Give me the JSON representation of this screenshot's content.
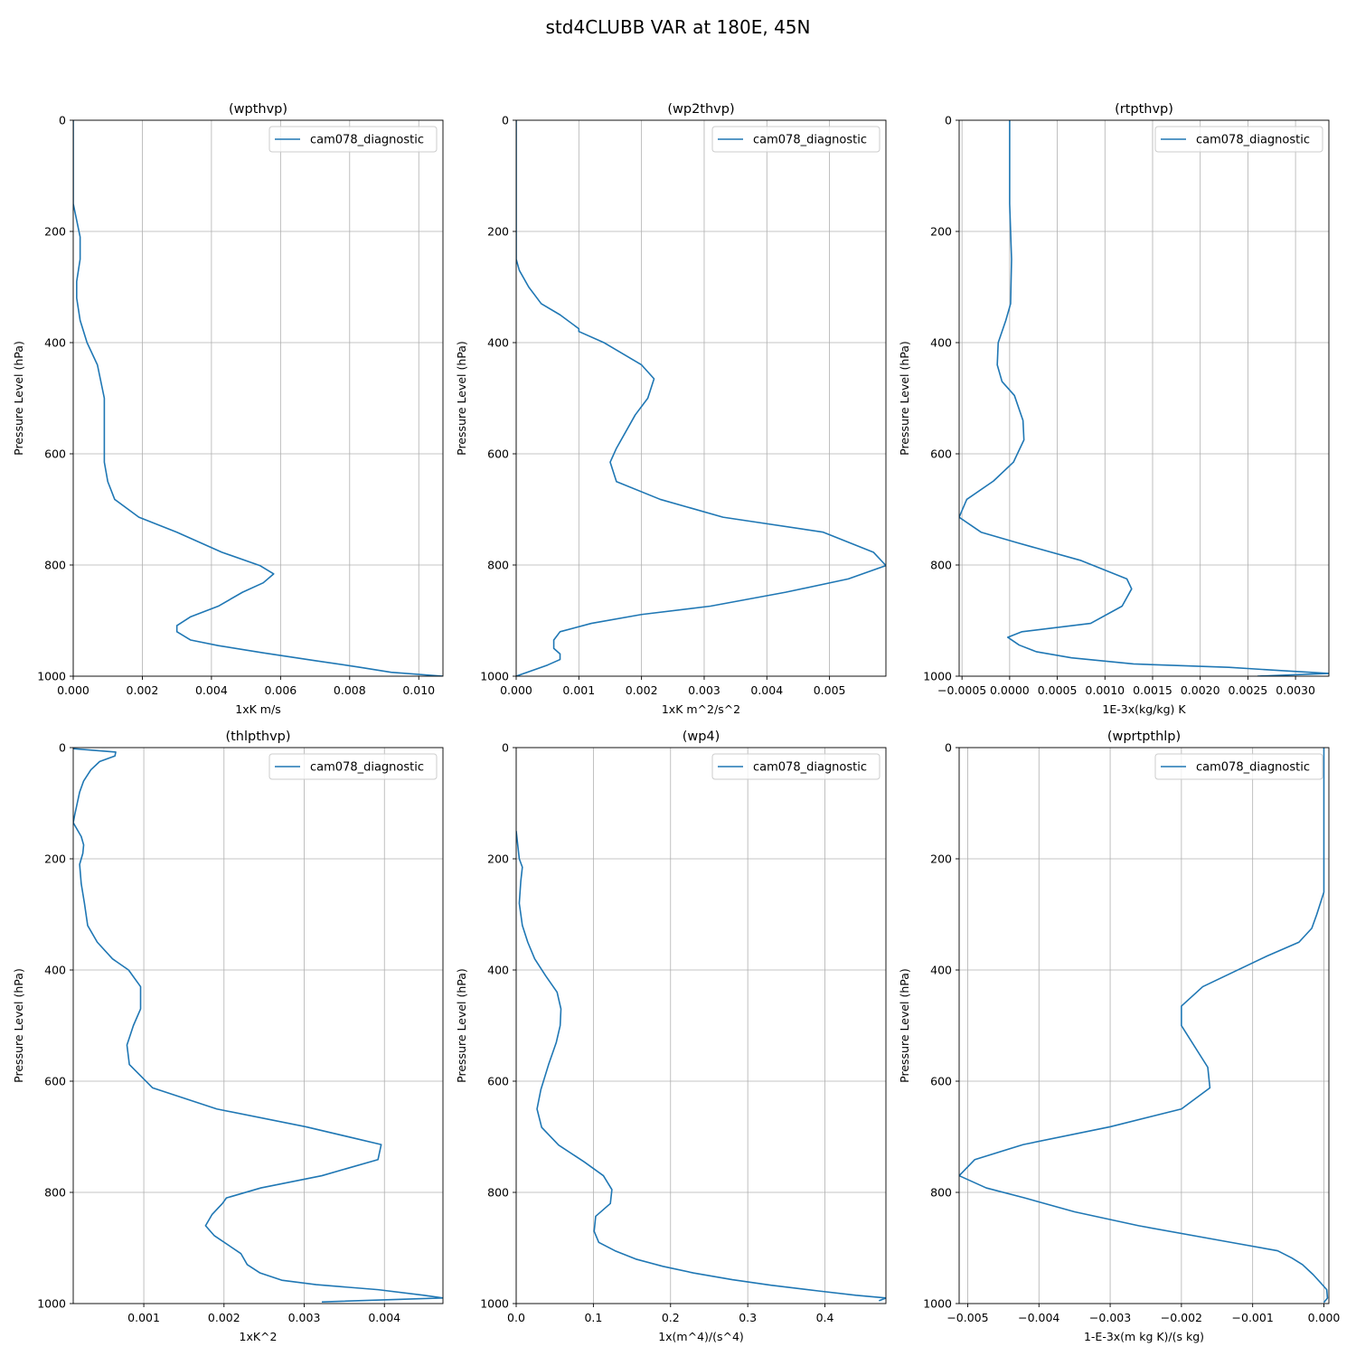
{
  "figure": {
    "title": "std4CLUBB VAR at 180E, 45N"
  },
  "colors": {
    "series": "#1f77b4",
    "grid": "#b0b0b0",
    "axes": "#000000"
  },
  "chart_data": [
    {
      "type": "line",
      "title": "(wpthvp)",
      "xlabel": "1xK m/s",
      "ylabel": "Pressure Level (hPa)",
      "xlim": [
        0.0,
        0.0107
      ],
      "ylim": [
        1000,
        0
      ],
      "xticks": [
        0.0,
        0.002,
        0.004,
        0.006,
        0.008,
        0.01
      ],
      "xtick_labels": [
        "0.000",
        "0.002",
        "0.004",
        "0.006",
        "0.008",
        "0.010"
      ],
      "yticks": [
        0,
        200,
        400,
        600,
        800,
        1000
      ],
      "ytick_labels": [
        "0",
        "200",
        "400",
        "600",
        "800",
        "1000"
      ],
      "grid": true,
      "legend": {
        "position": "top-right",
        "entries": [
          "cam078_diagnostic"
        ]
      },
      "series": [
        {
          "name": "cam078_diagnostic",
          "x": [
            0.0,
            0.0,
            0.0,
            0.0,
            0.0001,
            0.0002,
            0.0002,
            0.0001,
            0.0001,
            0.0002,
            0.0004,
            0.0007,
            0.0009,
            0.0009,
            0.0009,
            0.0009,
            0.0009,
            0.001,
            0.0012,
            0.0019,
            0.003,
            0.0043,
            0.0054,
            0.0058,
            0.0055,
            0.0049,
            0.0042,
            0.0034,
            0.003,
            0.003,
            0.0034,
            0.0042,
            0.0055,
            0.007,
            0.0083,
            0.0092,
            0.0107
          ],
          "y": [
            0,
            50,
            100,
            150,
            180,
            210,
            250,
            290,
            320,
            360,
            400,
            440,
            500,
            520,
            540,
            580,
            615,
            650,
            682,
            714,
            741,
            777,
            801,
            816,
            832,
            849,
            874,
            893,
            909,
            920,
            935,
            945,
            958,
            972,
            984,
            993,
            1000
          ]
        }
      ]
    },
    {
      "type": "line",
      "title": "(wp2thvp)",
      "xlabel": "1xK m^2/s^2",
      "ylabel": "Pressure Level (hPa)",
      "xlim": [
        0.0,
        0.0059
      ],
      "ylim": [
        1000,
        0
      ],
      "xticks": [
        0.0,
        0.001,
        0.002,
        0.003,
        0.004,
        0.005
      ],
      "xtick_labels": [
        "0.000",
        "0.001",
        "0.002",
        "0.003",
        "0.004",
        "0.005"
      ],
      "yticks": [
        0,
        200,
        400,
        600,
        800,
        1000
      ],
      "ytick_labels": [
        "0",
        "200",
        "400",
        "600",
        "800",
        "1000"
      ],
      "grid": true,
      "legend": {
        "position": "top-right",
        "entries": [
          "cam078_diagnostic"
        ]
      },
      "series": [
        {
          "name": "cam078_diagnostic",
          "x": [
            0.0,
            0.0,
            0.0,
            5e-05,
            0.0002,
            0.0004,
            0.0007,
            0.001,
            0.001,
            0.0014,
            0.002,
            0.0022,
            0.0021,
            0.0019,
            0.0016,
            0.0015,
            0.0016,
            0.0023,
            0.0033,
            0.0049,
            0.0057,
            0.0059,
            0.0053,
            0.0043,
            0.0031,
            0.002,
            0.0012,
            0.0007,
            0.0006,
            0.0006,
            0.0007,
            0.0007,
            0.0005,
            0.0
          ],
          "y": [
            0,
            100,
            250,
            270,
            300,
            330,
            350,
            375,
            380,
            400,
            440,
            465,
            500,
            530,
            590,
            615,
            650,
            682,
            714,
            741,
            777,
            801,
            825,
            849,
            874,
            889,
            905,
            920,
            935,
            950,
            960,
            970,
            980,
            1000
          ]
        }
      ]
    },
    {
      "type": "line",
      "title": "(rtpthvp)",
      "xlabel": "1E-3x(kg/kg) K",
      "ylabel": "Pressure Level (hPa)",
      "xlim": [
        -0.00053,
        0.00335
      ],
      "ylim": [
        1000,
        0
      ],
      "xticks": [
        -0.0005,
        0.0,
        0.0005,
        0.001,
        0.0015,
        0.002,
        0.0025,
        0.003
      ],
      "xtick_labels": [
        "−0.0005",
        "0.0000",
        "0.0005",
        "0.0010",
        "0.0015",
        "0.0020",
        "0.0025",
        "0.0030"
      ],
      "yticks": [
        0,
        200,
        400,
        600,
        800,
        1000
      ],
      "ytick_labels": [
        "0",
        "200",
        "400",
        "600",
        "800",
        "1000"
      ],
      "grid": true,
      "legend": {
        "position": "top-right",
        "entries": [
          "cam078_diagnostic"
        ]
      },
      "series": [
        {
          "name": "cam078_diagnostic",
          "x": [
            0.0,
            0.0,
            2e-05,
            1e-05,
            -4e-05,
            -0.00012,
            -0.00013,
            -8e-05,
            5e-05,
            0.00014,
            0.00015,
            4e-05,
            -0.00017,
            -0.00045,
            -0.00053,
            -0.0003,
            8e-05,
            0.00075,
            0.00123,
            0.00128,
            0.00118,
            0.00085,
            0.00013,
            -2e-05,
            0.0001,
            0.00028,
            0.00065,
            0.0013,
            0.0023,
            0.00285,
            0.00335,
            0.0026
          ],
          "y": [
            0,
            150,
            250,
            330,
            360,
            400,
            440,
            470,
            495,
            540,
            575,
            615,
            649,
            682,
            714,
            741,
            760,
            792,
            825,
            843,
            874,
            905,
            920,
            930,
            944,
            956,
            967,
            978,
            984,
            990,
            995,
            1000
          ]
        }
      ]
    },
    {
      "type": "line",
      "title": "(thlpthvp)",
      "xlabel": "1xK^2",
      "ylabel": "Pressure Level (hPa)",
      "xlim": [
        0.00012,
        0.00473
      ],
      "ylim": [
        1000,
        0
      ],
      "xticks": [
        0.001,
        0.002,
        0.003,
        0.004
      ],
      "xtick_labels": [
        "0.001",
        "0.002",
        "0.003",
        "0.004"
      ],
      "yticks": [
        0,
        200,
        400,
        600,
        800,
        1000
      ],
      "ytick_labels": [
        "0",
        "200",
        "400",
        "600",
        "800",
        "1000"
      ],
      "grid": true,
      "legend": {
        "position": "top-right",
        "entries": [
          "cam078_diagnostic"
        ]
      },
      "series": [
        {
          "name": "cam078_diagnostic",
          "x": [
            0.00012,
            0.00065,
            0.00064,
            0.00045,
            0.00034,
            0.00025,
            0.0002,
            0.00017,
            0.00014,
            0.00012,
            0.00022,
            0.00025,
            0.00024,
            0.0002,
            0.00022,
            0.00026,
            0.0003,
            0.00042,
            0.00061,
            0.00081,
            0.00096,
            0.00096,
            0.00087,
            0.00079,
            0.00082,
            0.00111,
            0.00191,
            0.00302,
            0.00396,
            0.00392,
            0.00322,
            0.00246,
            0.00203,
            0.00198,
            0.00185,
            0.00177,
            0.00188,
            0.00221,
            0.00229,
            0.00245,
            0.00272,
            0.00315,
            0.00392,
            0.00449,
            0.00473,
            0.00322
          ],
          "y": [
            2,
            8,
            15,
            25,
            40,
            60,
            80,
            100,
            120,
            135,
            160,
            175,
            190,
            210,
            245,
            280,
            320,
            350,
            380,
            400,
            430,
            470,
            500,
            535,
            570,
            612,
            650,
            682,
            714,
            741,
            770,
            792,
            810,
            820,
            840,
            860,
            878,
            910,
            930,
            945,
            958,
            966,
            975,
            985,
            990,
            997
          ]
        }
      ]
    },
    {
      "type": "line",
      "title": "(wp4)",
      "xlabel": "1x(m^4)/(s^4)",
      "ylabel": "Pressure Level (hPa)",
      "xlim": [
        0.0,
        0.479
      ],
      "ylim": [
        1000,
        0
      ],
      "xticks": [
        0.0,
        0.1,
        0.2,
        0.3,
        0.4
      ],
      "xtick_labels": [
        "0.0",
        "0.1",
        "0.2",
        "0.3",
        "0.4"
      ],
      "yticks": [
        0,
        200,
        400,
        600,
        800,
        1000
      ],
      "ytick_labels": [
        "0",
        "200",
        "400",
        "600",
        "800",
        "1000"
      ],
      "grid": true,
      "legend": {
        "position": "top-right",
        "entries": [
          "cam078_diagnostic"
        ]
      },
      "series": [
        {
          "name": "cam078_diagnostic",
          "x": [
            0.0,
            0.004,
            0.008,
            0.006,
            0.004,
            0.008,
            0.015,
            0.024,
            0.038,
            0.053,
            0.058,
            0.057,
            0.052,
            0.042,
            0.032,
            0.027,
            0.033,
            0.055,
            0.088,
            0.113,
            0.124,
            0.122,
            0.103,
            0.101,
            0.107,
            0.128,
            0.155,
            0.19,
            0.23,
            0.28,
            0.33,
            0.39,
            0.44,
            0.479,
            0.47
          ],
          "y": [
            150,
            200,
            215,
            240,
            280,
            320,
            350,
            380,
            410,
            440,
            470,
            500,
            530,
            570,
            615,
            650,
            683,
            715,
            745,
            770,
            795,
            820,
            843,
            870,
            890,
            905,
            920,
            933,
            945,
            957,
            967,
            977,
            985,
            990,
            995
          ]
        }
      ]
    },
    {
      "type": "line",
      "title": "(wprtpthlp)",
      "xlabel": "1-E-3x(m kg K)/(s kg)",
      "ylabel": "Pressure Level (hPa)",
      "xlim": [
        -0.00512,
        7e-05
      ],
      "ylim": [
        1000,
        0
      ],
      "xticks": [
        -0.005,
        -0.004,
        -0.003,
        -0.002,
        -0.001,
        0.0
      ],
      "xtick_labels": [
        "−0.005",
        "−0.004",
        "−0.003",
        "−0.002",
        "−0.001",
        "0.000"
      ],
      "yticks": [
        0,
        200,
        400,
        600,
        800,
        1000
      ],
      "ytick_labels": [
        "0",
        "200",
        "400",
        "600",
        "800",
        "1000"
      ],
      "grid": true,
      "legend": {
        "position": "top-right",
        "entries": [
          "cam078_diagnostic"
        ]
      },
      "series": [
        {
          "name": "cam078_diagnostic",
          "x": [
            0.0,
            0.0,
            0.0,
            0.0,
            -5e-05,
            -0.0001,
            -0.00017,
            -0.00035,
            -0.0008,
            -0.0017,
            -0.002,
            -0.002,
            -0.00163,
            -0.0016,
            -0.002,
            -0.003,
            -0.00422,
            -0.0049,
            -0.00512,
            -0.00474,
            -0.0042,
            -0.0035,
            -0.0026,
            -0.0013,
            -0.00065,
            -0.00045,
            -0.0003,
            -0.00015,
            -5e-05,
            4e-05,
            5e-05,
            0.0
          ],
          "y": [
            0,
            100,
            200,
            260,
            280,
            300,
            325,
            350,
            375,
            430,
            465,
            500,
            575,
            612,
            650,
            682,
            714,
            741,
            770,
            792,
            810,
            835,
            860,
            890,
            905,
            918,
            930,
            948,
            962,
            975,
            990,
            998
          ]
        }
      ]
    }
  ]
}
